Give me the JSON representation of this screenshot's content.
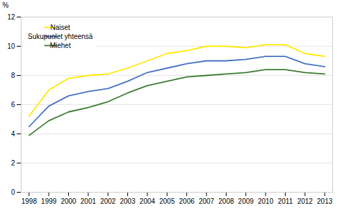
{
  "chart_data": {
    "type": "line",
    "x": [
      1998,
      1999,
      2000,
      2001,
      2002,
      2003,
      2004,
      2005,
      2006,
      2007,
      2008,
      2009,
      2010,
      2011,
      2012,
      2013
    ],
    "series": [
      {
        "name": "Naiset",
        "color": "#FFE800",
        "values": [
          5.2,
          7.0,
          7.8,
          8.0,
          8.1,
          8.5,
          9.0,
          9.5,
          9.7,
          10.0,
          10.0,
          9.9,
          10.1,
          10.1,
          9.5,
          9.3
        ]
      },
      {
        "name": "Sukupuolet yhteensä",
        "color": "#4472C4",
        "values": [
          4.5,
          5.9,
          6.6,
          6.9,
          7.1,
          7.6,
          8.2,
          8.5,
          8.8,
          9.0,
          9.0,
          9.1,
          9.3,
          9.3,
          8.8,
          8.6
        ]
      },
      {
        "name": "Miehet",
        "color": "#3A7B2F",
        "values": [
          3.9,
          4.9,
          5.5,
          5.8,
          6.2,
          6.8,
          7.3,
          7.6,
          7.9,
          8.0,
          8.1,
          8.2,
          8.4,
          8.4,
          8.2,
          8.1
        ]
      }
    ],
    "xlim": [
      1997.6,
      2013.4
    ],
    "xticks": [
      1998,
      1999,
      2000,
      2001,
      2002,
      2003,
      2004,
      2005,
      2006,
      2007,
      2008,
      2009,
      2010,
      2011,
      2012,
      2013
    ],
    "ylim": [
      0,
      12
    ],
    "yticks": [
      0,
      2,
      4,
      6,
      8,
      10,
      12
    ],
    "ylabel": "%",
    "grid": true,
    "legend": "upper left"
  }
}
